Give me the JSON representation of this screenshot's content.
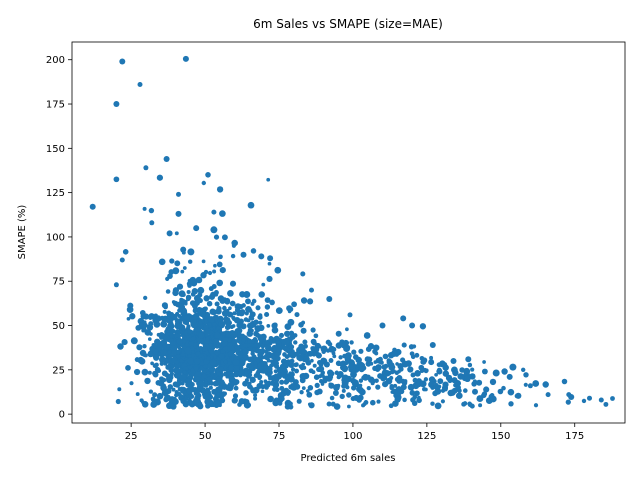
{
  "chart_data": {
    "type": "scatter",
    "title": "6m Sales vs SMAPE (size=MAE)",
    "xlabel": "Predicted 6m sales",
    "ylabel": "SMAPE (%)",
    "xlim": [
      5,
      192
    ],
    "ylim": [
      -5,
      210
    ],
    "x_ticks": [
      25,
      50,
      75,
      100,
      125,
      150,
      175
    ],
    "y_ticks": [
      0,
      25,
      50,
      75,
      100,
      125,
      150,
      175,
      200
    ],
    "grid": false,
    "legend": "none",
    "point_color": "#1f77b4",
    "point_count_estimate": 2000,
    "highlight_points": [
      {
        "x": 22,
        "y": 199,
        "mae": 3
      },
      {
        "x": 28,
        "y": 186,
        "mae": 2.5
      },
      {
        "x": 20,
        "y": 175,
        "mae": 3
      },
      {
        "x": 37,
        "y": 144,
        "mae": 3
      },
      {
        "x": 30,
        "y": 139,
        "mae": 2.5
      },
      {
        "x": 12,
        "y": 117,
        "mae": 3
      },
      {
        "x": 41,
        "y": 124,
        "mae": 2.5
      },
      {
        "x": 53,
        "y": 114,
        "mae": 2.5
      },
      {
        "x": 41,
        "y": 113,
        "mae": 3
      },
      {
        "x": 32,
        "y": 108,
        "mae": 2.5
      },
      {
        "x": 38,
        "y": 102,
        "mae": 3
      },
      {
        "x": 47,
        "y": 105,
        "mae": 3
      },
      {
        "x": 53,
        "y": 104,
        "mae": 3.5
      },
      {
        "x": 22,
        "y": 87,
        "mae": 2.5
      },
      {
        "x": 20,
        "y": 73,
        "mae": 2.5
      },
      {
        "x": 63,
        "y": 90,
        "mae": 3
      },
      {
        "x": 69,
        "y": 89,
        "mae": 3
      },
      {
        "x": 72,
        "y": 88,
        "mae": 3
      },
      {
        "x": 86,
        "y": 70,
        "mae": 2.5
      },
      {
        "x": 92,
        "y": 65,
        "mae": 3
      },
      {
        "x": 99,
        "y": 56,
        "mae": 2.5
      },
      {
        "x": 110,
        "y": 50,
        "mae": 3
      },
      {
        "x": 117,
        "y": 54,
        "mae": 3
      },
      {
        "x": 120,
        "y": 50,
        "mae": 3
      },
      {
        "x": 127,
        "y": 39,
        "mae": 3
      },
      {
        "x": 139,
        "y": 31,
        "mae": 3
      },
      {
        "x": 134,
        "y": 30,
        "mae": 3
      },
      {
        "x": 153,
        "y": 21,
        "mae": 3
      },
      {
        "x": 160,
        "y": 16,
        "mae": 2.5
      },
      {
        "x": 166,
        "y": 11,
        "mae": 2.5
      },
      {
        "x": 173,
        "y": 11,
        "mae": 2.5
      },
      {
        "x": 180,
        "y": 9,
        "mae": 2.5
      },
      {
        "x": 184,
        "y": 8,
        "mae": 2.5
      },
      {
        "x": 143,
        "y": 5,
        "mae": 2
      },
      {
        "x": 21,
        "y": 14,
        "mae": 2
      }
    ]
  }
}
